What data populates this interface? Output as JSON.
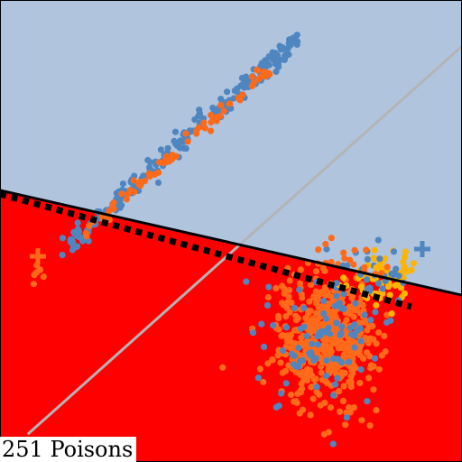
{
  "caption": "251 Poisons",
  "colors": {
    "region_upper": "#b0c4de",
    "region_lower": "#ff0000",
    "clean_blue": "#4f86c0",
    "poison_orange": "#ff6a1a",
    "target_yellow": "#ffb400",
    "reference_line": "#b4b4b4",
    "boundary": "#000000"
  },
  "chart_data": {
    "type": "scatter",
    "title": "",
    "xlabel": "",
    "ylabel": "",
    "xlim": [
      0,
      100
    ],
    "ylim": [
      0,
      100
    ],
    "grid": false,
    "legend": "none",
    "regions": [
      {
        "name": "upper",
        "color": "#b0c4de"
      },
      {
        "name": "lower",
        "color": "#ff0000"
      }
    ],
    "lines": [
      {
        "name": "decision-boundary",
        "style": "solid",
        "points": [
          [
            0,
            58.8
          ],
          [
            100,
            36.1
          ]
        ]
      },
      {
        "name": "decision-boundary-before",
        "style": "dashed",
        "points": [
          [
            0,
            58.0
          ],
          [
            89,
            33.6
          ]
        ]
      },
      {
        "name": "reference-diagonal",
        "style": "solid",
        "points": [
          [
            6,
            6
          ],
          [
            100,
            90
          ]
        ]
      }
    ],
    "markers": [
      {
        "name": "target-plus-blue",
        "x": 91.4,
        "y": 46.1
      },
      {
        "name": "target-plus-orange",
        "x": 8.2,
        "y": 44.5
      }
    ],
    "series": [
      {
        "name": "",
        "color": "#4f86c0",
        "shape": "diagonal-band",
        "count": 260,
        "from": [
          14.5,
          46.9
        ],
        "to": [
          64.6,
          91.6
        ],
        "spread": 0.9
      },
      {
        "name": "",
        "color": "#ff6a1a",
        "shape": "diagonal-band",
        "count": 70,
        "from": [
          17.6,
          49.0
        ],
        "to": [
          58.6,
          85.4
        ],
        "spread": 0.8
      },
      {
        "name": "",
        "color": "#ff6a1a",
        "shape": "cloud",
        "count": 500,
        "center": [
          70.3,
          26.4
        ],
        "spread": [
          5.5,
          7.0
        ]
      },
      {
        "name": "",
        "color": "#4f86c0",
        "shape": "cloud",
        "count": 90,
        "center": [
          70.3,
          26.4
        ],
        "spread": [
          6.5,
          7.5
        ]
      },
      {
        "name": "",
        "color": "#ffb400",
        "shape": "cloud",
        "count": 70,
        "center": [
          82.8,
          40.6
        ],
        "spread": [
          3.0,
          3.0
        ]
      },
      {
        "name": "",
        "color": "#4f86c0",
        "shape": "cloud",
        "count": 30,
        "center": [
          81.3,
          40.2
        ],
        "spread": [
          4.0,
          3.0
        ]
      },
      {
        "name": "",
        "color": "#ff6a1a",
        "shape": "cloud",
        "count": 15,
        "center": [
          75.0,
          43.0
        ],
        "spread": [
          4.0,
          2.5
        ]
      },
      {
        "name": "",
        "color": "#ff6a1a",
        "shape": "cloud",
        "count": 6,
        "center": [
          8.2,
          41.0
        ],
        "spread": [
          0.8,
          2.0
        ]
      }
    ]
  }
}
